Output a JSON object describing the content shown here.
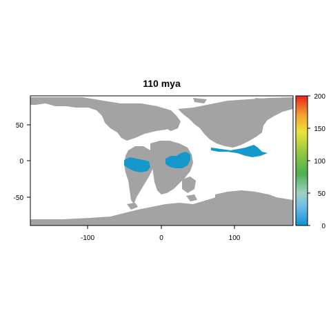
{
  "map": {
    "title": "110 mya",
    "x_ticks": [
      "-100",
      "0",
      "100"
    ],
    "y_ticks": [
      "50",
      "0",
      "-50"
    ],
    "xlim": [
      -180,
      180
    ],
    "ylim": [
      -90,
      90
    ],
    "land_color": "#a3a3a3",
    "ocean_color": "#ffffff",
    "highlight_color": "#1598cc"
  },
  "legend": {
    "ticks": [
      "200",
      "150",
      "100",
      "50",
      "0"
    ],
    "range": [
      0,
      200
    ],
    "gradient": [
      "#0c93d4",
      "#80c5e8",
      "#9ed4ab",
      "#4bb050",
      "#7bbf2c",
      "#e8e03a",
      "#f4b030",
      "#f06a25",
      "#e8221b"
    ]
  }
}
